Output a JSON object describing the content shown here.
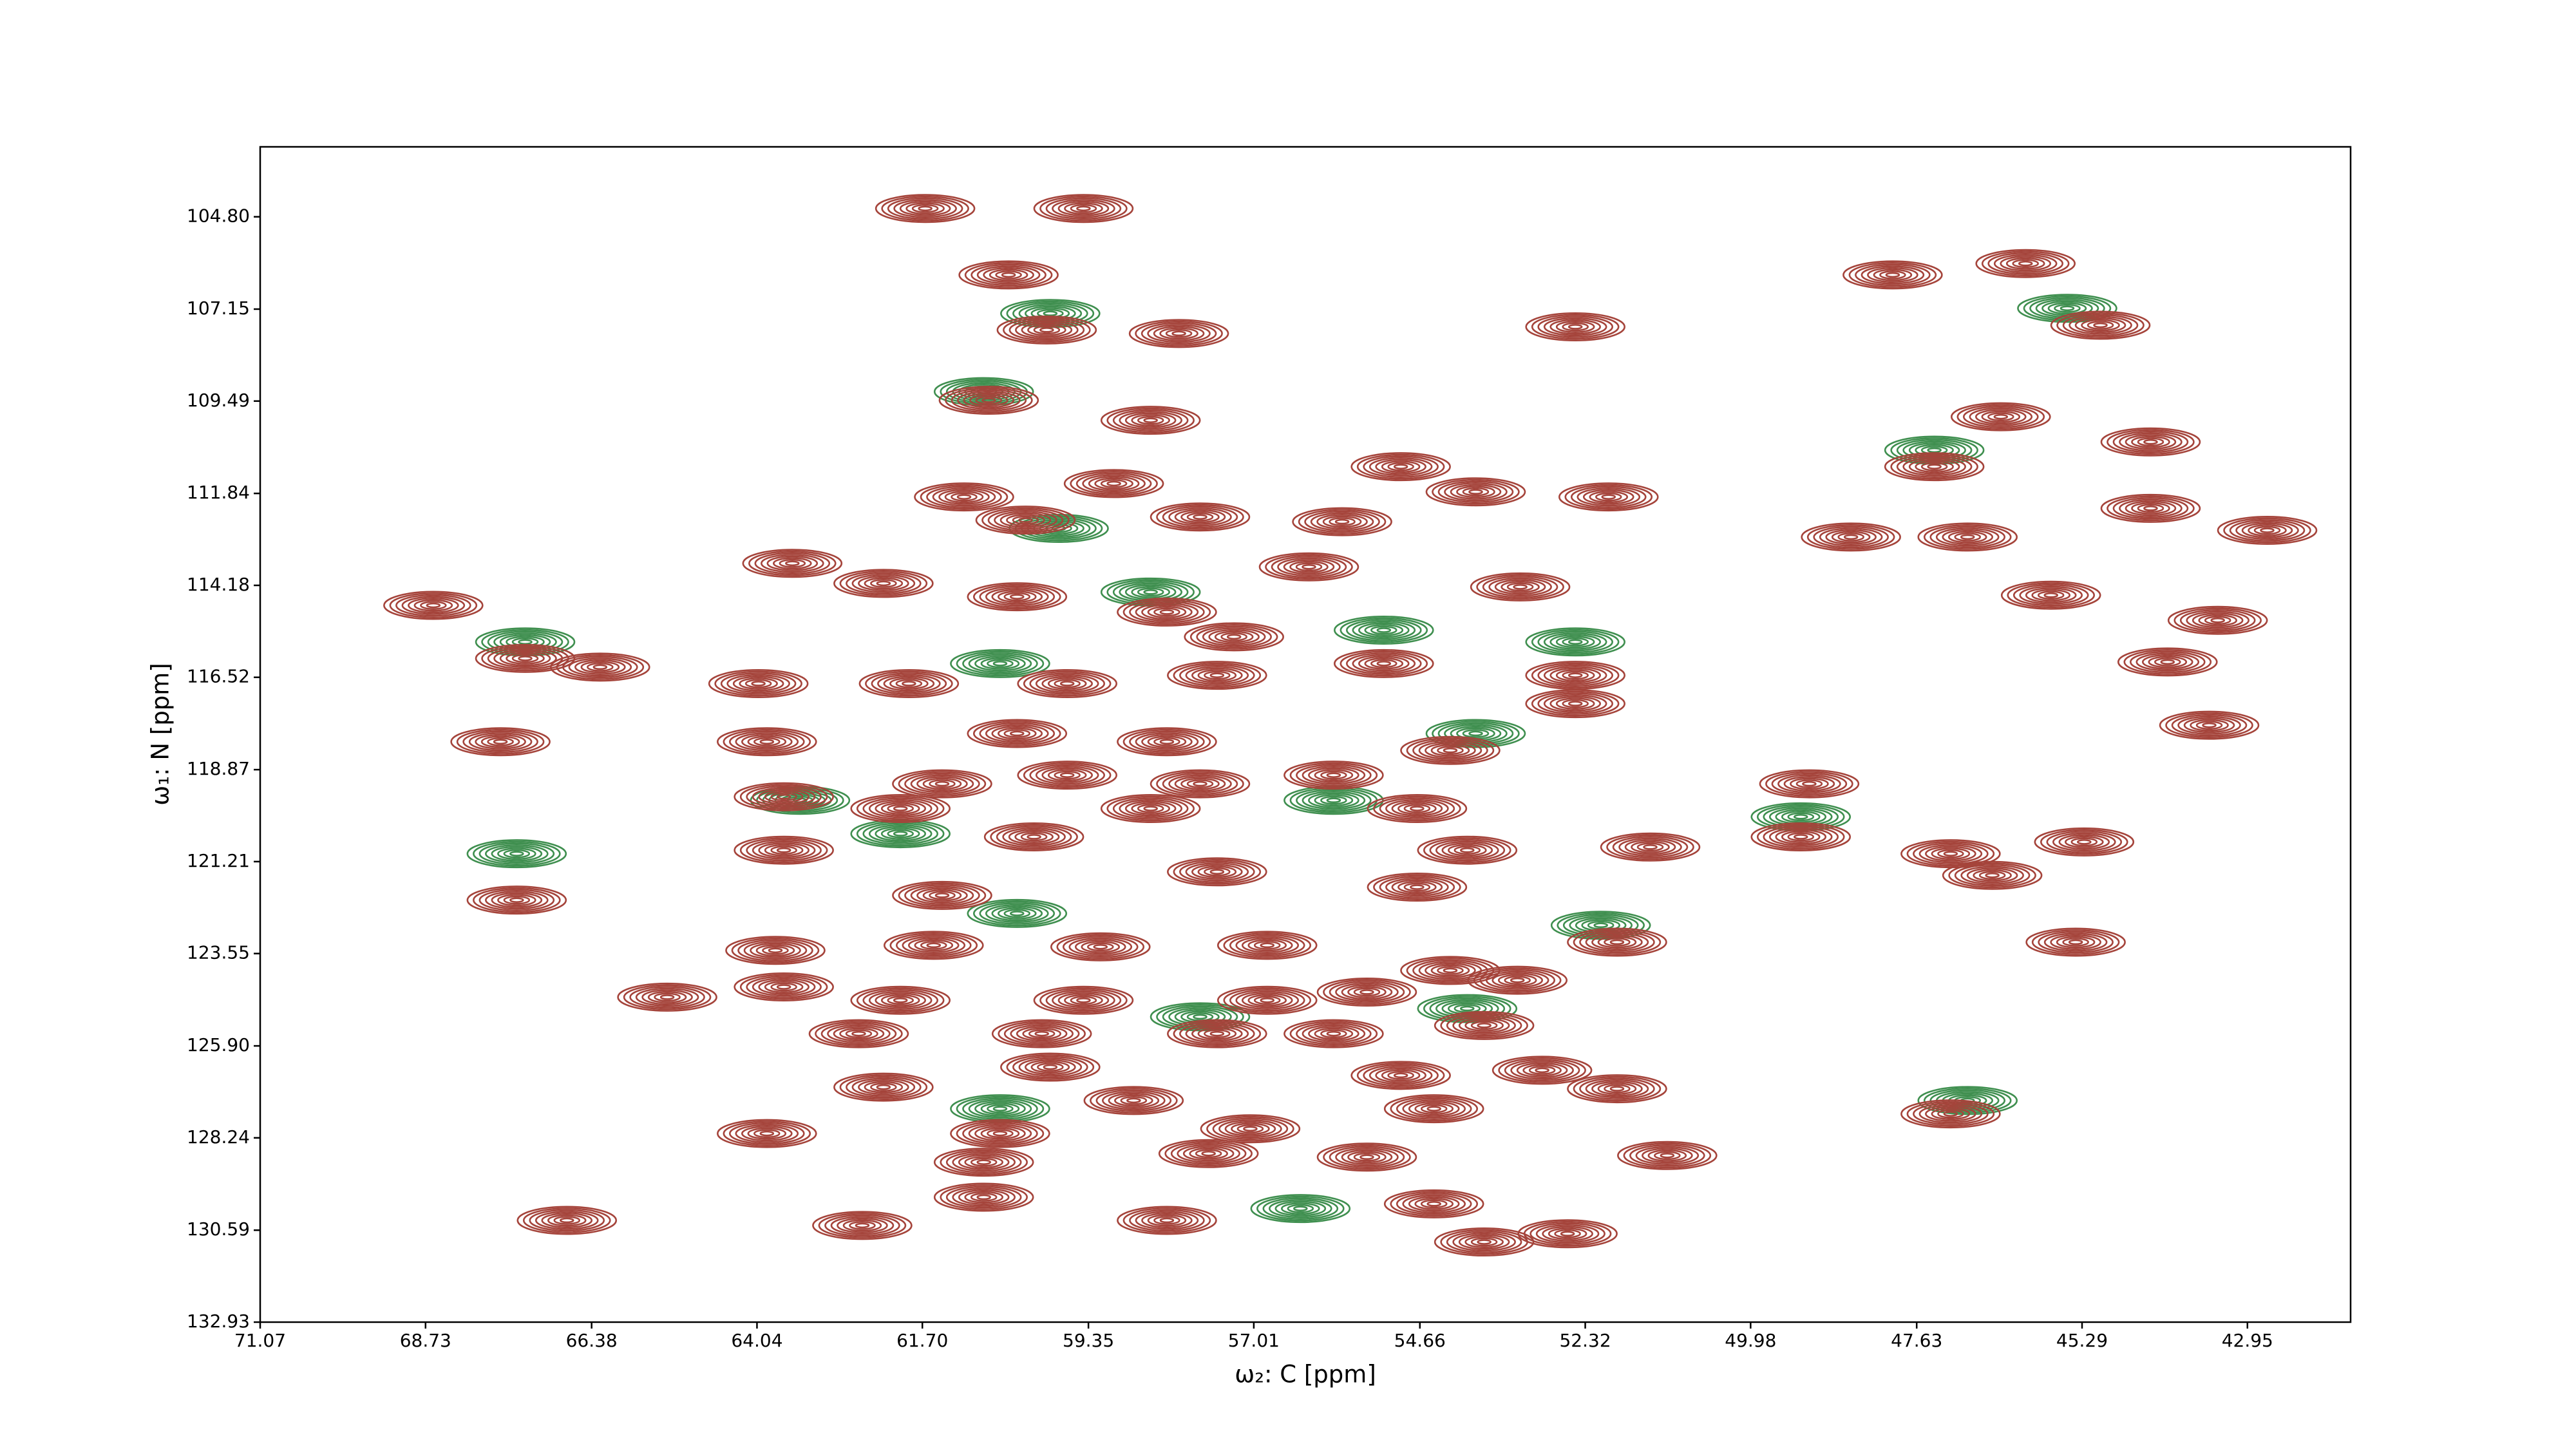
{
  "chart_data": {
    "type": "contour",
    "xlabel": "ω₂: C [ppm]",
    "ylabel": "ω₁: N [ppm]",
    "xlim": [
      71.07,
      41.49
    ],
    "ylim": [
      132.93,
      103.02
    ],
    "xticks": [
      71.07,
      68.73,
      66.38,
      64.04,
      {
        "value": 61.7,
        "label": "61.70"
      },
      59.35,
      57.01,
      54.66,
      52.32,
      49.98,
      47.63,
      45.29,
      42.95
    ],
    "yticks": [
      {
        "value": 104.8,
        "label": "104.80"
      },
      107.15,
      109.49,
      111.84,
      114.18,
      116.52,
      118.87,
      121.21,
      123.55,
      {
        "value": 125.9,
        "label": "125.90"
      },
      128.24,
      130.59,
      132.93
    ],
    "series": [
      {
        "color": "#3f8f4f",
        "x": [
          59.89,
          45.5,
          60.83,
          59.77,
          58.47,
          55.17,
          60.6,
          52.46,
          63.43,
          55.88,
          49.27,
          62.01,
          53.87,
          60.36,
          52.1,
          57.77,
          53.99,
          60.6,
          56.35,
          46.91,
          67.32,
          67.44,
          47.38
        ],
        "y": [
          107.26,
          107.13,
          109.25,
          112.73,
          114.35,
          115.32,
          116.17,
          115.62,
          119.65,
          119.65,
          120.07,
          120.5,
          117.95,
          122.53,
          122.83,
          125.16,
          124.95,
          127.5,
          130.04,
          127.29,
          115.62,
          121.01,
          110.74
        ]
      },
      {
        "color": "#a5443b",
        "x": [
          61.66,
          59.42,
          60.48,
          59.94,
          58.07,
          52.46,
          60.76,
          58.47,
          54.93,
          61.11,
          58.99,
          53.87,
          51.99,
          60.24,
          57.77,
          55.76,
          56.23,
          63.54,
          62.25,
          60.36,
          58.24,
          57.29,
          53.24,
          68.62,
          67.32,
          66.26,
          64.02,
          61.89,
          59.65,
          57.53,
          55.17,
          52.46,
          52.46,
          63.9,
          67.67,
          60.36,
          58.24,
          54.23,
          61.42,
          59.65,
          57.77,
          55.88,
          49.15,
          63.66,
          62.01,
          58.47,
          54.7,
          49.27,
          60.12,
          51.4,
          63.66,
          53.99,
          47.15,
          67.44,
          61.42,
          57.53,
          54.7,
          51.87,
          63.78,
          61.54,
          59.18,
          56.82,
          54.23,
          65.31,
          63.66,
          59.42,
          55.41,
          53.28,
          62.6,
          60.01,
          57.53,
          55.88,
          53.75,
          59.89,
          54.93,
          52.93,
          62.25,
          51.87,
          63.9,
          60.6,
          58.71,
          57.06,
          54.46,
          47.15,
          60.83,
          57.65,
          55.41,
          51.16,
          60.83,
          66.73,
          62.55,
          58.24,
          54.46,
          53.75,
          47.97,
          46.09,
          45.03,
          44.32,
          46.44,
          47.38,
          44.32,
          42.67,
          48.56,
          45.73,
          43.37,
          44.08,
          43.49,
          45.26,
          45.38,
          46.91,
          46.56,
          52.57,
          62.01,
          56.82
        ],
        "y": [
          104.59,
          104.59,
          106.28,
          107.68,
          107.77,
          107.6,
          109.47,
          109.98,
          111.16,
          111.93,
          111.59,
          111.8,
          111.93,
          112.52,
          112.44,
          112.56,
          113.71,
          113.62,
          114.13,
          114.47,
          114.86,
          115.49,
          114.22,
          114.69,
          116.04,
          116.26,
          116.68,
          116.68,
          116.68,
          116.47,
          116.17,
          116.47,
          117.19,
          118.16,
          118.16,
          117.95,
          118.16,
          118.38,
          119.23,
          119.01,
          119.23,
          119.01,
          119.23,
          119.56,
          119.86,
          119.86,
          119.86,
          120.58,
          120.58,
          120.84,
          120.92,
          120.92,
          121.01,
          122.19,
          122.07,
          121.47,
          121.86,
          123.26,
          123.47,
          123.34,
          123.38,
          123.34,
          123.98,
          124.66,
          124.4,
          124.74,
          124.53,
          124.23,
          125.59,
          125.59,
          125.59,
          125.59,
          125.38,
          126.44,
          126.65,
          126.52,
          126.95,
          126.99,
          128.13,
          128.13,
          127.29,
          128.01,
          127.5,
          127.63,
          128.86,
          128.64,
          128.73,
          128.69,
          129.75,
          130.34,
          130.47,
          130.34,
          129.92,
          130.89,
          106.28,
          105.99,
          107.56,
          110.53,
          109.89,
          111.16,
          112.22,
          112.78,
          112.95,
          114.43,
          115.07,
          116.13,
          117.74,
          120.71,
          123.26,
          112.95,
          121.56,
          130.68,
          124.74,
          124.74
        ]
      }
    ]
  }
}
